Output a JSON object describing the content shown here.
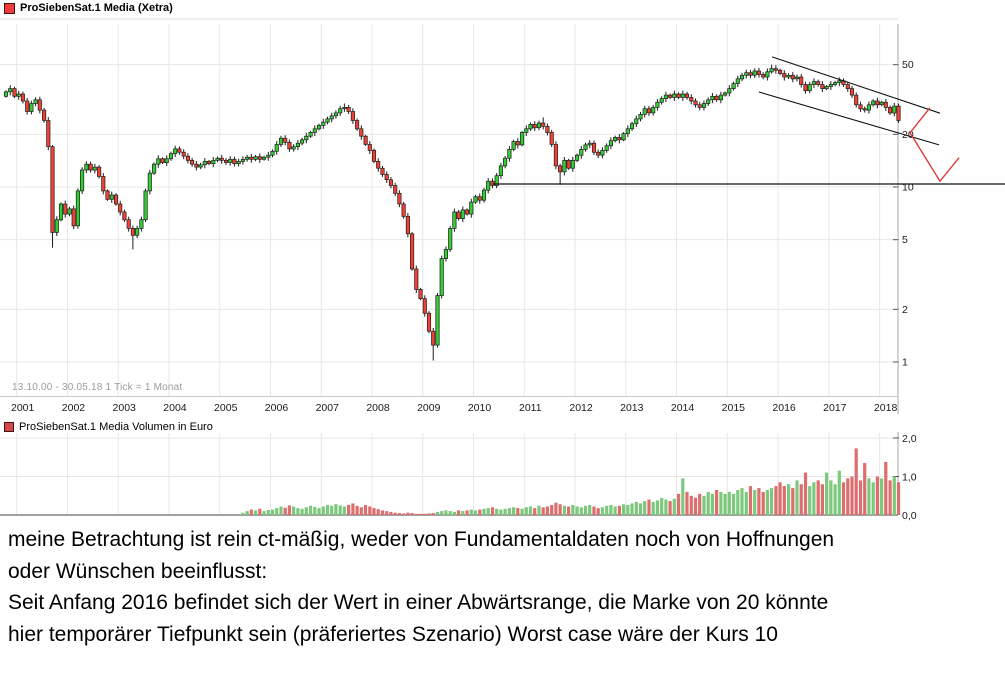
{
  "header": {
    "title": "ProSiebenSat.1 Media (Xetra)",
    "icon": "red-square-series-icon",
    "icon_color": "#ee3b3b"
  },
  "price_panel": {
    "info": "13.10.00 - 30.05.18    1 Tick = 1 Monat",
    "y_ticks": [
      {
        "label": "50",
        "value": 50
      },
      {
        "label": "20",
        "value": 20
      },
      {
        "label": "10",
        "value": 10
      },
      {
        "label": "5",
        "value": 5
      },
      {
        "label": "2",
        "value": 2
      },
      {
        "label": "1",
        "value": 1
      }
    ]
  },
  "x_axis": {
    "years": [
      "2001",
      "2002",
      "2003",
      "2004",
      "2005",
      "2006",
      "2007",
      "2008",
      "2009",
      "2010",
      "2011",
      "2012",
      "2013",
      "2014",
      "2015",
      "2016",
      "2017",
      "2018"
    ]
  },
  "volume_panel": {
    "title": "ProSiebenSat.1 Media Volumen in Euro",
    "icon": "red-square-series-icon",
    "y_ticks": [
      {
        "label": "2,0",
        "value": 2
      },
      {
        "label": "1,0",
        "value": 1
      },
      {
        "label": "0,0",
        "value": 0
      }
    ]
  },
  "chart_data": {
    "type": "candlestick",
    "title": "ProSiebenSat.1 Media (Xetra)",
    "scale": "log",
    "period": {
      "start": "13.10.00",
      "end": "30.05.18",
      "tick": "1 Monat"
    },
    "start_month": "2000-10",
    "ylim": [
      0.8,
      70
    ],
    "open_first": 33,
    "monthly_close": [
      35,
      36.5,
      33,
      34,
      31,
      27,
      30,
      31.5,
      27.5,
      24,
      17,
      5.5,
      6.5,
      8,
      7,
      7.5,
      6,
      9.5,
      12.5,
      13.5,
      12.5,
      13,
      11.5,
      9.5,
      8.5,
      9,
      8,
      7.2,
      6.5,
      5.8,
      5.3,
      5.8,
      6.5,
      9.5,
      12,
      13.5,
      14.5,
      13.8,
      14.5,
      15.5,
      16.5,
      15.8,
      15,
      14.2,
      13.5,
      13,
      13.4,
      14,
      13.6,
      14.2,
      14.6,
      14.2,
      13.8,
      14.4,
      13.6,
      14,
      14.4,
      14.8,
      14.4,
      14.9,
      14.4,
      14.8,
      15.2,
      16,
      17.5,
      19,
      18,
      16.5,
      17,
      17.8,
      18.6,
      19.5,
      20.5,
      21.5,
      22.5,
      23.5,
      24.5,
      25.5,
      26.5,
      28,
      28.5,
      27,
      24,
      21.5,
      19.5,
      17.5,
      16.2,
      14,
      12.8,
      11.8,
      11,
      10.2,
      9.2,
      8,
      6.8,
      5.4,
      3.4,
      2.6,
      2.3,
      1.9,
      1.5,
      1.25,
      2.4,
      3.9,
      4.4,
      5.8,
      7.2,
      6.6,
      7.4,
      7.0,
      8.2,
      8.8,
      8.4,
      9.6,
      10.8,
      10.2,
      11.6,
      13.2,
      14.6,
      16.4,
      18.2,
      17.4,
      20.5,
      21.5,
      22.8,
      21.8,
      23.2,
      22.2,
      20.5,
      17.5,
      13.2,
      12.2,
      14.2,
      12.8,
      14.2,
      15.2,
      16.4,
      17.4,
      17.8,
      15.8,
      15.2,
      16.2,
      17.2,
      18.4,
      19.2,
      18.6,
      20.2,
      21.5,
      23,
      24.5,
      26,
      28,
      26.5,
      28.5,
      30.5,
      32,
      33.5,
      32.5,
      34,
      32.5,
      34,
      32.5,
      31,
      29.5,
      28.5,
      30,
      31.5,
      33,
      31.5,
      33.5,
      34.5,
      36.5,
      39,
      41.5,
      43.5,
      45,
      43.5,
      46,
      44,
      42.5,
      45.5,
      47.5,
      46.5,
      44.5,
      42.5,
      43.5,
      41.5,
      42.5,
      38.5,
      35.5,
      38.5,
      40,
      38.5,
      36.5,
      37.5,
      38.5,
      39.5,
      40.5,
      38.5,
      36.5,
      33.5,
      29.5,
      28,
      27.5,
      29.5,
      31,
      29.5,
      30.5,
      28.5,
      26.5,
      29,
      24
    ],
    "wick_overrides": [
      {
        "i": 11,
        "low": 4.5
      },
      {
        "i": 30,
        "low": 4.4
      },
      {
        "i": 80,
        "high": 30
      },
      {
        "i": 101,
        "low": 1.02
      },
      {
        "i": 127,
        "high": 25
      },
      {
        "i": 131,
        "low": 10.3
      },
      {
        "i": 181,
        "high": 50
      }
    ],
    "volume": [
      0,
      0,
      0,
      0,
      0,
      0,
      0,
      0,
      0,
      0,
      0,
      0,
      0,
      0,
      0,
      0,
      0,
      0,
      0,
      0,
      0,
      0,
      0,
      0,
      0,
      0,
      0,
      0,
      0,
      0,
      0,
      0,
      0,
      0,
      0,
      0,
      0,
      0,
      0,
      0,
      0,
      0,
      0,
      0,
      0,
      0,
      0,
      0,
      0,
      0,
      0,
      0,
      0,
      0,
      0,
      0,
      0.06,
      0.1,
      0.14,
      0.12,
      0.16,
      0.1,
      0.13,
      0.14,
      0.18,
      0.22,
      0.19,
      0.25,
      0.22,
      0.18,
      0.16,
      0.2,
      0.24,
      0.21,
      0.18,
      0.22,
      0.26,
      0.24,
      0.28,
      0.25,
      0.22,
      0.26,
      0.3,
      0.24,
      0.2,
      0.26,
      0.22,
      0.18,
      0.15,
      0.12,
      0.1,
      0.08,
      0.06,
      0.05,
      0.04,
      0.06,
      0.05,
      0.03,
      0.03,
      0.03,
      0.04,
      0.05,
      0.08,
      0.1,
      0.12,
      0.1,
      0.08,
      0.12,
      0.1,
      0.12,
      0.14,
      0.12,
      0.14,
      0.16,
      0.18,
      0.2,
      0.16,
      0.14,
      0.16,
      0.18,
      0.2,
      0.18,
      0.16,
      0.2,
      0.22,
      0.18,
      0.24,
      0.2,
      0.22,
      0.26,
      0.32,
      0.28,
      0.24,
      0.22,
      0.26,
      0.22,
      0.2,
      0.24,
      0.26,
      0.22,
      0.18,
      0.2,
      0.24,
      0.26,
      0.22,
      0.24,
      0.28,
      0.26,
      0.3,
      0.34,
      0.3,
      0.36,
      0.4,
      0.34,
      0.38,
      0.44,
      0.4,
      0.36,
      0.42,
      0.55,
      0.95,
      0.6,
      0.5,
      0.45,
      0.55,
      0.5,
      0.6,
      0.55,
      0.65,
      0.6,
      0.55,
      0.6,
      0.55,
      0.65,
      0.7,
      0.6,
      0.75,
      0.65,
      0.7,
      0.6,
      0.65,
      0.7,
      0.75,
      0.85,
      0.75,
      0.8,
      0.7,
      0.9,
      0.8,
      1.1,
      0.75,
      0.85,
      0.9,
      0.8,
      1.1,
      0.9,
      0.8,
      1.15,
      0.85,
      0.95,
      1.0,
      1.73,
      0.9,
      1.35,
      0.95,
      0.85,
      1.0,
      0.95,
      1.38,
      0.9,
      1.0,
      0.85
    ],
    "colors": {
      "up": "#33cc33",
      "down": "#f04136",
      "vol_up": "#7cc87c",
      "vol_down": "#dd6e6e",
      "grid": "#e7e7e7",
      "axis": "#aaaaaa",
      "candle_stroke": "#1d1d1d",
      "annotation_black": "#111111",
      "annotation_red": "#e03a3a"
    },
    "annotations": {
      "support_line": {
        "price": 10.4,
        "from_month": 115,
        "to_month": 237
      },
      "channel_lines": [
        {
          "m1": 181.1,
          "p1": 55.4,
          "m2": 220.8,
          "p2": 26.4
        },
        {
          "m1": 178.0,
          "p1": 34.9,
          "m2": 220.6,
          "p2": 17.4
        }
      ],
      "red_scenario_path": [
        [
          218.4,
          28.3
        ],
        [
          213.7,
          20.4
        ],
        [
          220.8,
          10.8
        ],
        [
          225.3,
          14.7
        ]
      ]
    }
  },
  "comment": {
    "lines": [
      "meine Betrachtung ist rein ct-mäßig, weder von Fundamentaldaten noch von Hoffnungen",
      "oder Wünschen beeinflusst:",
      "Seit Anfang 2016 befindet sich der Wert in einer Abwärtsrange, die Marke von 20 könnte",
      "hier temporärer Tiefpunkt sein (präferiertes Szenario) Worst case wäre der Kurs 10"
    ]
  }
}
